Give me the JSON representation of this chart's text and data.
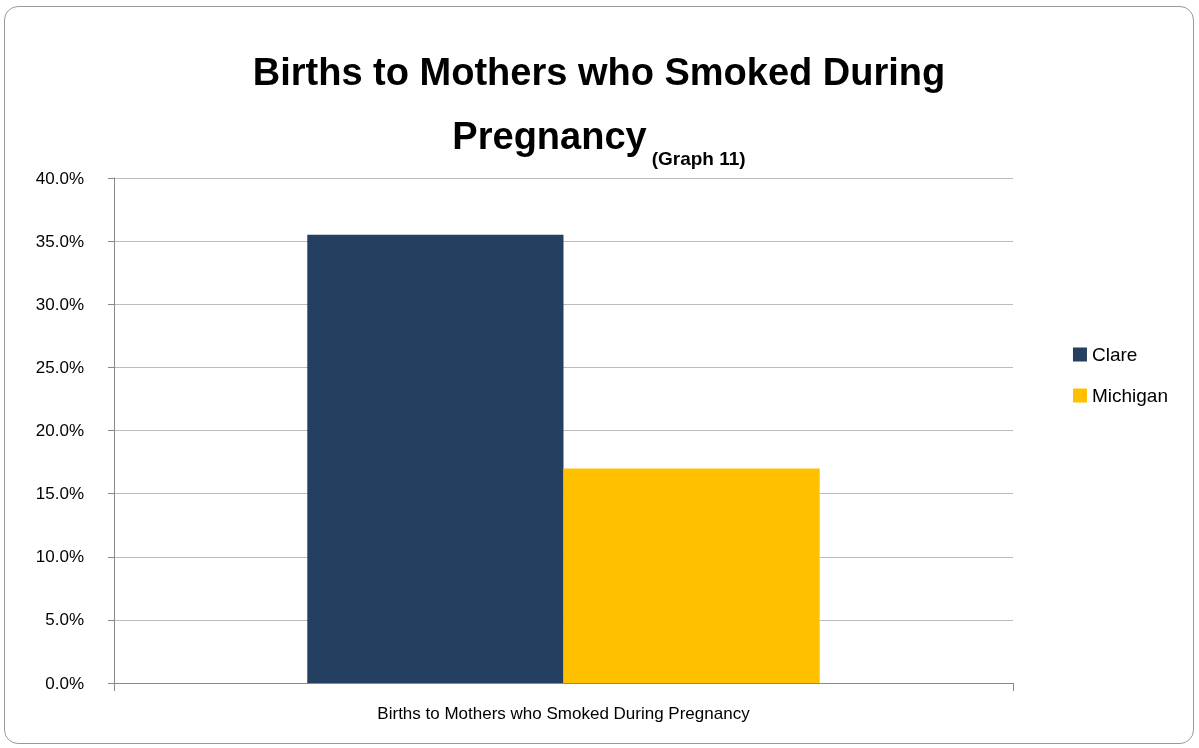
{
  "chart_data": {
    "type": "bar",
    "title": "Births to Mothers who Smoked During Pregnancy",
    "subtitle": "(Graph 11)",
    "categories": [
      "Births to Mothers who Smoked During Pregnancy"
    ],
    "series": [
      {
        "name": "Clare",
        "color": "#243f60",
        "values": [
          35.5
        ]
      },
      {
        "name": "Michigan",
        "color": "#ffc000",
        "values": [
          17.0
        ]
      }
    ],
    "ylim": [
      0,
      40
    ],
    "yticks": [
      {
        "value": 0,
        "label": "0.0%"
      },
      {
        "value": 5,
        "label": "5.0%"
      },
      {
        "value": 10,
        "label": "10.0%"
      },
      {
        "value": 15,
        "label": "15.0%"
      },
      {
        "value": 20,
        "label": "20.0%"
      },
      {
        "value": 25,
        "label": "25.0%"
      },
      {
        "value": 30,
        "label": "30.0%"
      },
      {
        "value": 35,
        "label": "35.0%"
      },
      {
        "value": 40,
        "label": "40.0%"
      }
    ],
    "grid": "y",
    "legend": "right"
  }
}
